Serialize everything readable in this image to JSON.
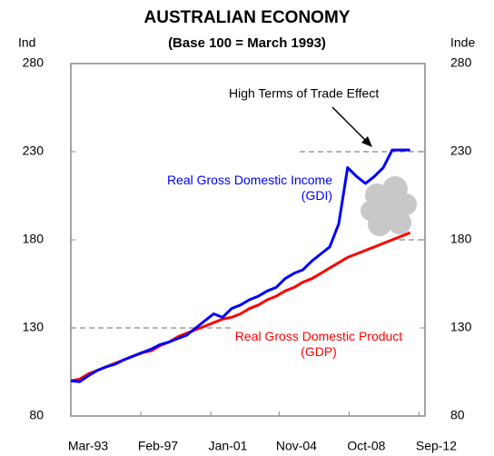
{
  "chart_data": {
    "type": "line",
    "title": "AUSTRALIAN ECONOMY",
    "subtitle": "(Base 100 = March 1993)",
    "ylabel": "Ind",
    "y2label": "Inde",
    "annotation": "High Terms of Trade Effect",
    "x": [
      "Mar-93",
      "Sep-93",
      "Mar-94",
      "Sep-94",
      "Mar-95",
      "Sep-95",
      "Mar-96",
      "Sep-96",
      "Mar-97",
      "Sep-97",
      "Mar-98",
      "Sep-98",
      "Mar-99",
      "Sep-99",
      "Mar-00",
      "Sep-00",
      "Mar-01",
      "Sep-01",
      "Mar-02",
      "Sep-02",
      "Mar-03",
      "Sep-03",
      "Mar-04",
      "Sep-04",
      "Mar-05",
      "Sep-05",
      "Mar-06",
      "Sep-06",
      "Mar-07",
      "Sep-07",
      "Mar-08",
      "Sep-08",
      "Mar-09",
      "Sep-09",
      "Mar-10",
      "Sep-10",
      "Mar-11",
      "Sep-11",
      "Mar-12"
    ],
    "series": [
      {
        "name": "Real Gross Domestic Income (GDI)",
        "color": "#0000ff",
        "values": [
          100,
          99.5,
          103,
          106,
          108,
          109.5,
          112,
          114,
          116,
          118,
          120.5,
          122,
          124,
          126,
          130,
          134,
          138,
          136,
          141,
          143,
          146,
          148,
          151,
          153,
          158,
          161,
          163,
          168,
          172,
          176,
          189,
          221,
          216,
          212,
          216,
          221,
          231,
          231,
          231
        ]
      },
      {
        "name": "Real Gross Domestic Product (GDP)",
        "color": "#ff0000",
        "values": [
          100,
          101,
          104,
          106,
          108,
          110,
          112,
          114,
          116,
          117,
          120,
          122,
          125,
          127,
          129,
          131,
          133,
          135,
          136,
          138,
          141,
          143,
          146,
          148,
          151,
          153,
          156,
          158,
          161,
          164,
          167,
          170,
          172,
          174,
          176,
          178,
          180,
          182,
          184
        ]
      }
    ],
    "xlim": [
      "Mar-93",
      "Jan-13"
    ],
    "xticks": [
      "Mar-93",
      "Feb-97",
      "Jan-01",
      "Nov-04",
      "Oct-08",
      "Sep-12"
    ],
    "ylim": [
      80,
      280
    ],
    "yticks": [
      80,
      130,
      180,
      230,
      280
    ],
    "y2lim": [
      80,
      280
    ],
    "y2ticks": [
      80,
      130,
      180,
      230,
      280
    ],
    "reference_lines": [
      130,
      180,
      230
    ]
  }
}
